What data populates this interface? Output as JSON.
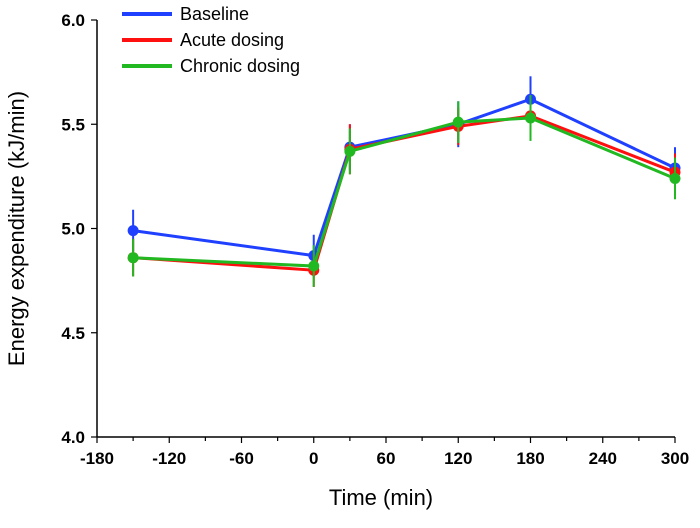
{
  "chart_data": {
    "type": "line",
    "xlabel": "Time (min)",
    "ylabel": "Energy expenditure (kJ/min)",
    "xlim": [
      -180,
      300
    ],
    "ylim": [
      4.0,
      6.0
    ],
    "xticks": [
      -180,
      -120,
      -60,
      0,
      60,
      120,
      180,
      240,
      300
    ],
    "xtick_labels": [
      "-180",
      "-120",
      "-60",
      "0",
      "60",
      "120",
      "180",
      "240",
      "300"
    ],
    "yticks": [
      4.0,
      4.5,
      5.0,
      5.5,
      6.0
    ],
    "ytick_labels": [
      "4.0",
      "4.5",
      "5.0",
      "5.5",
      "6.0"
    ],
    "grid": false,
    "legend_position": "top-left",
    "x": [
      -150,
      0,
      30,
      120,
      180,
      300
    ],
    "series": [
      {
        "name": "Baseline",
        "color": "#2040ff",
        "values": [
          4.99,
          4.87,
          5.39,
          5.5,
          5.62,
          5.29
        ],
        "errors": [
          0.1,
          0.1,
          0.11,
          0.11,
          0.11,
          0.1
        ]
      },
      {
        "name": "Acute dosing",
        "color": "#ff1010",
        "values": [
          4.86,
          4.8,
          5.38,
          5.49,
          5.54,
          5.27
        ],
        "errors": [
          0.09,
          0.08,
          0.12,
          0.09,
          0.1,
          0.09
        ]
      },
      {
        "name": "Chronic dosing",
        "color": "#22b822",
        "values": [
          4.86,
          4.82,
          5.37,
          5.51,
          5.53,
          5.24
        ],
        "errors": [
          0.09,
          0.1,
          0.11,
          0.1,
          0.11,
          0.1
        ]
      }
    ]
  }
}
